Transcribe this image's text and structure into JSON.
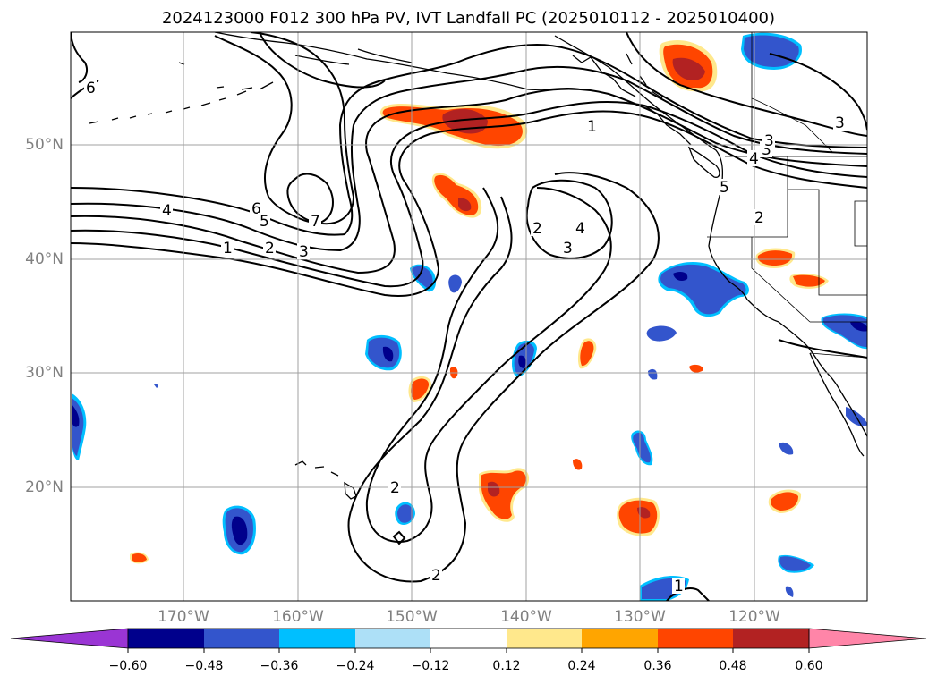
{
  "title": "2024123000 F012 300 hPa PV, IVT Landfall PC (2025010112 - 2025010400)",
  "axes": {
    "latitude_labels": [
      "50°N",
      "40°N",
      "30°N",
      "20°N"
    ],
    "longitude_labels": [
      "170°W",
      "160°W",
      "150°W",
      "140°W",
      "130°W",
      "120°W"
    ],
    "lon_range": [
      -180,
      -110
    ],
    "lat_range": [
      10,
      60
    ],
    "grid": true
  },
  "colorbar": {
    "ticks": [
      "−0.60",
      "−0.48",
      "−0.36",
      "−0.24",
      "−0.12",
      "0.12",
      "0.24",
      "0.36",
      "0.48",
      "0.60"
    ],
    "colors": [
      "#9a35d4",
      "#00008c",
      "#3355cc",
      "#00bfff",
      "#ade0f7",
      "#ffffff",
      "#ffe88c",
      "#ffa500",
      "#ff4500",
      "#b22222",
      "#ff85a8"
    ],
    "extend": "both"
  },
  "contour_labels": [
    "6",
    "4",
    "6",
    "5",
    "7",
    "1",
    "2",
    "3",
    "1",
    "2",
    "3",
    "4",
    "2",
    "3",
    "3",
    "4",
    "3",
    "2",
    "2",
    "1",
    "1",
    "5"
  ]
}
